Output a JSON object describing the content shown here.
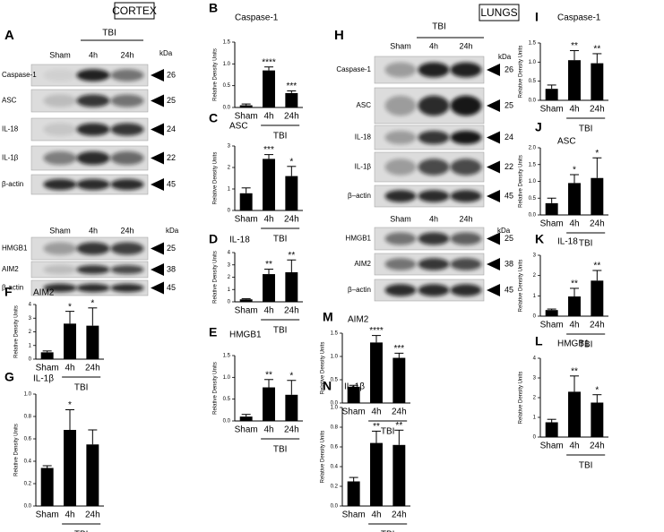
{
  "chart_data": [
    {
      "type": "bar",
      "panel": "B",
      "title": "Caspase-1",
      "y_label": "Relative Density Units",
      "categories": [
        "Sham",
        "4h",
        "24h"
      ],
      "group_label": "TBI",
      "values": [
        0.05,
        0.85,
        0.33
      ],
      "errors": [
        0.03,
        0.08,
        0.05
      ],
      "significance": [
        null,
        "****",
        "***"
      ],
      "color": "#000000",
      "ylim": [
        0,
        1.5
      ],
      "yticks": [
        {
          "value": 0,
          "label": "0.0"
        },
        0.5,
        {
          "value": 1,
          "label": "1.0"
        },
        1.5
      ]
    },
    {
      "type": "bar",
      "panel": "C",
      "title": "ASC",
      "y_label": "Relative Density Units",
      "categories": [
        "Sham",
        "4h",
        "24h"
      ],
      "group_label": "TBI",
      "values": [
        0.8,
        2.4,
        1.6
      ],
      "errors": [
        0.25,
        0.2,
        0.45
      ],
      "significance": [
        null,
        "***",
        "*"
      ],
      "color": "#000000",
      "ylim": [
        0,
        3
      ],
      "yticks": [
        0,
        1,
        2,
        3
      ]
    },
    {
      "type": "bar",
      "panel": "D",
      "title": "IL-18",
      "y_label": "Relative Density Units",
      "categories": [
        "Sham",
        "4h",
        "24h"
      ],
      "group_label": "TBI",
      "values": [
        0.2,
        2.25,
        2.4
      ],
      "errors": [
        0.05,
        0.4,
        1.0
      ],
      "significance": [
        null,
        "**",
        "**"
      ],
      "color": "#000000",
      "ylim": [
        0,
        4
      ],
      "yticks": [
        0,
        1,
        2,
        3,
        4
      ]
    },
    {
      "type": "bar",
      "panel": "E",
      "title": "HMGB1",
      "y_label": "Relative Density Units",
      "categories": [
        "Sham",
        "4h",
        "24h"
      ],
      "group_label": "TBI",
      "values": [
        0.1,
        0.77,
        0.6
      ],
      "errors": [
        0.05,
        0.18,
        0.33
      ],
      "significance": [
        null,
        "**",
        "*"
      ],
      "color": "#000000",
      "ylim": [
        0,
        1.5
      ],
      "yticks": [
        {
          "value": 0,
          "label": "0.0"
        },
        0.5,
        {
          "value": 1,
          "label": "1.0"
        },
        1.5
      ]
    },
    {
      "type": "bar",
      "panel": "F",
      "title": "AIM2",
      "y_label": "Relative Density Units",
      "categories": [
        "Sham",
        "4h",
        "24h"
      ],
      "group_label": "TBI",
      "values": [
        0.5,
        2.6,
        2.45
      ],
      "errors": [
        0.1,
        0.9,
        1.3
      ],
      "significance": [
        null,
        "*",
        "*"
      ],
      "color": "#000000",
      "ylim": [
        0,
        4
      ],
      "yticks": [
        0,
        1,
        2,
        3,
        4
      ]
    },
    {
      "type": "bar",
      "panel": "G",
      "title": "IL-1β",
      "y_label": "Relative Density Units",
      "categories": [
        "Sham",
        "4h",
        "24h"
      ],
      "group_label": "TBI",
      "values": [
        0.34,
        0.68,
        0.55
      ],
      "errors": [
        0.02,
        0.18,
        0.13
      ],
      "significance": [
        null,
        "*",
        null
      ],
      "color": "#000000",
      "ylim": [
        0,
        1
      ],
      "yticks": [
        {
          "value": 0,
          "label": "0.0"
        },
        0.2,
        0.4,
        0.6,
        0.8,
        {
          "value": 1,
          "label": "1.0"
        }
      ]
    },
    {
      "type": "bar",
      "panel": "I",
      "title": "Caspase-1",
      "y_label": "Relative Density Units",
      "categories": [
        "Sham",
        "4h",
        "24h"
      ],
      "group_label": "TBI",
      "values": [
        0.3,
        1.05,
        0.97
      ],
      "errors": [
        0.1,
        0.25,
        0.25
      ],
      "significance": [
        null,
        "**",
        "**"
      ],
      "color": "#000000",
      "ylim": [
        0,
        1.5
      ],
      "yticks": [
        {
          "value": 0,
          "label": "0.0"
        },
        0.5,
        {
          "value": 1,
          "label": "1.0"
        },
        1.5
      ]
    },
    {
      "type": "bar",
      "panel": "J",
      "title": "ASC",
      "y_label": "Relative Density Units",
      "categories": [
        "Sham",
        "4h",
        "24h"
      ],
      "group_label": "TBI",
      "values": [
        0.35,
        0.95,
        1.1
      ],
      "errors": [
        0.15,
        0.25,
        0.6
      ],
      "significance": [
        null,
        "*",
        "*"
      ],
      "color": "#000000",
      "ylim": [
        0,
        2
      ],
      "yticks": [
        {
          "value": 0,
          "label": "0.0"
        },
        0.5,
        {
          "value": 1,
          "label": "1.0"
        },
        1.5,
        {
          "value": 2,
          "label": "2.0"
        }
      ]
    },
    {
      "type": "bar",
      "panel": "K",
      "title": "IL-18",
      "y_label": "Relative Density Units",
      "categories": [
        "Sham",
        "4h",
        "24h"
      ],
      "group_label": "TBI",
      "values": [
        0.3,
        0.97,
        1.75
      ],
      "errors": [
        0.05,
        0.4,
        0.5
      ],
      "significance": [
        null,
        "**",
        "**"
      ],
      "color": "#000000",
      "ylim": [
        0,
        3
      ],
      "yticks": [
        0,
        1,
        2,
        3
      ]
    },
    {
      "type": "bar",
      "panel": "L",
      "title": "HMGB1",
      "y_label": "Relative Density Units",
      "categories": [
        "Sham",
        "4h",
        "24h"
      ],
      "group_label": "TBI",
      "values": [
        0.75,
        2.3,
        1.75
      ],
      "errors": [
        0.15,
        0.8,
        0.4
      ],
      "significance": [
        null,
        "**",
        "*"
      ],
      "color": "#000000",
      "ylim": [
        0,
        4
      ],
      "yticks": [
        0,
        1,
        2,
        3,
        4
      ]
    },
    {
      "type": "bar",
      "panel": "M",
      "title": "AIM2",
      "y_label": "Relative Density Units",
      "categories": [
        "Sham",
        "4h",
        "24h"
      ],
      "group_label": "TBI",
      "values": [
        0.35,
        1.3,
        0.97
      ],
      "errors": [
        0.03,
        0.15,
        0.1
      ],
      "significance": [
        null,
        "****",
        "***"
      ],
      "color": "#000000",
      "ylim": [
        0,
        1.5
      ],
      "yticks": [
        {
          "value": 0,
          "label": "0.0"
        },
        0.5,
        {
          "value": 1,
          "label": "1.0"
        },
        1.5
      ]
    },
    {
      "type": "bar",
      "panel": "N",
      "title": "IL-1β",
      "y_label": "Relative Density Units",
      "categories": [
        "Sham",
        "4h",
        "24h"
      ],
      "group_label": "TBI",
      "values": [
        0.25,
        0.64,
        0.62
      ],
      "errors": [
        0.04,
        0.12,
        0.15
      ],
      "significance": [
        null,
        "**",
        "**"
      ],
      "color": "#000000",
      "ylim": [
        0,
        1
      ],
      "yticks": [
        {
          "value": 0,
          "label": "0.0"
        },
        0.2,
        0.4,
        0.6,
        0.8,
        {
          "value": 1,
          "label": "1.0"
        }
      ]
    }
  ],
  "blots": {
    "cortex": {
      "header": "CORTEX",
      "panel": "A",
      "group": "TBI",
      "lanes": [
        "Sham",
        "4h",
        "24h"
      ],
      "kda": "kDa",
      "rows": [
        {
          "label": "Caspase-1",
          "kda": 26
        },
        {
          "label": "ASC",
          "kda": 25
        },
        {
          "label": "IL-18",
          "kda": 24
        },
        {
          "label": "IL-1β",
          "kda": 22
        },
        {
          "label": "β-actin",
          "kda": 45
        }
      ],
      "lanes2": [
        "Sham",
        "4h",
        "24h"
      ],
      "kda2": "kDa",
      "rows2": [
        {
          "label": "HMGB1",
          "kda": 25
        },
        {
          "label": "AIM2",
          "kda": 38
        },
        {
          "label": "β-actin",
          "kda": 45
        }
      ]
    },
    "lungs": {
      "header": "LUNGS",
      "panel": "H",
      "group": "TBI",
      "lanes": [
        "Sham",
        "4h",
        "24h"
      ],
      "kda": "kDa",
      "rows": [
        {
          "label": "Caspase-1",
          "kda": 26
        },
        {
          "label": "ASC",
          "kda": 25
        },
        {
          "label": "IL-18",
          "kda": 24
        },
        {
          "label": "IL-1β",
          "kda": 22
        },
        {
          "label": "β–actin",
          "kda": 45
        }
      ],
      "lanes2": [
        "Sham",
        "4h",
        "24h"
      ],
      "kda2": "kDa",
      "rows2": [
        {
          "label": "HMGB1",
          "kda": 25
        },
        {
          "label": "AIM2",
          "kda": 38
        },
        {
          "label": "β–actin",
          "kda": 45
        }
      ]
    }
  }
}
